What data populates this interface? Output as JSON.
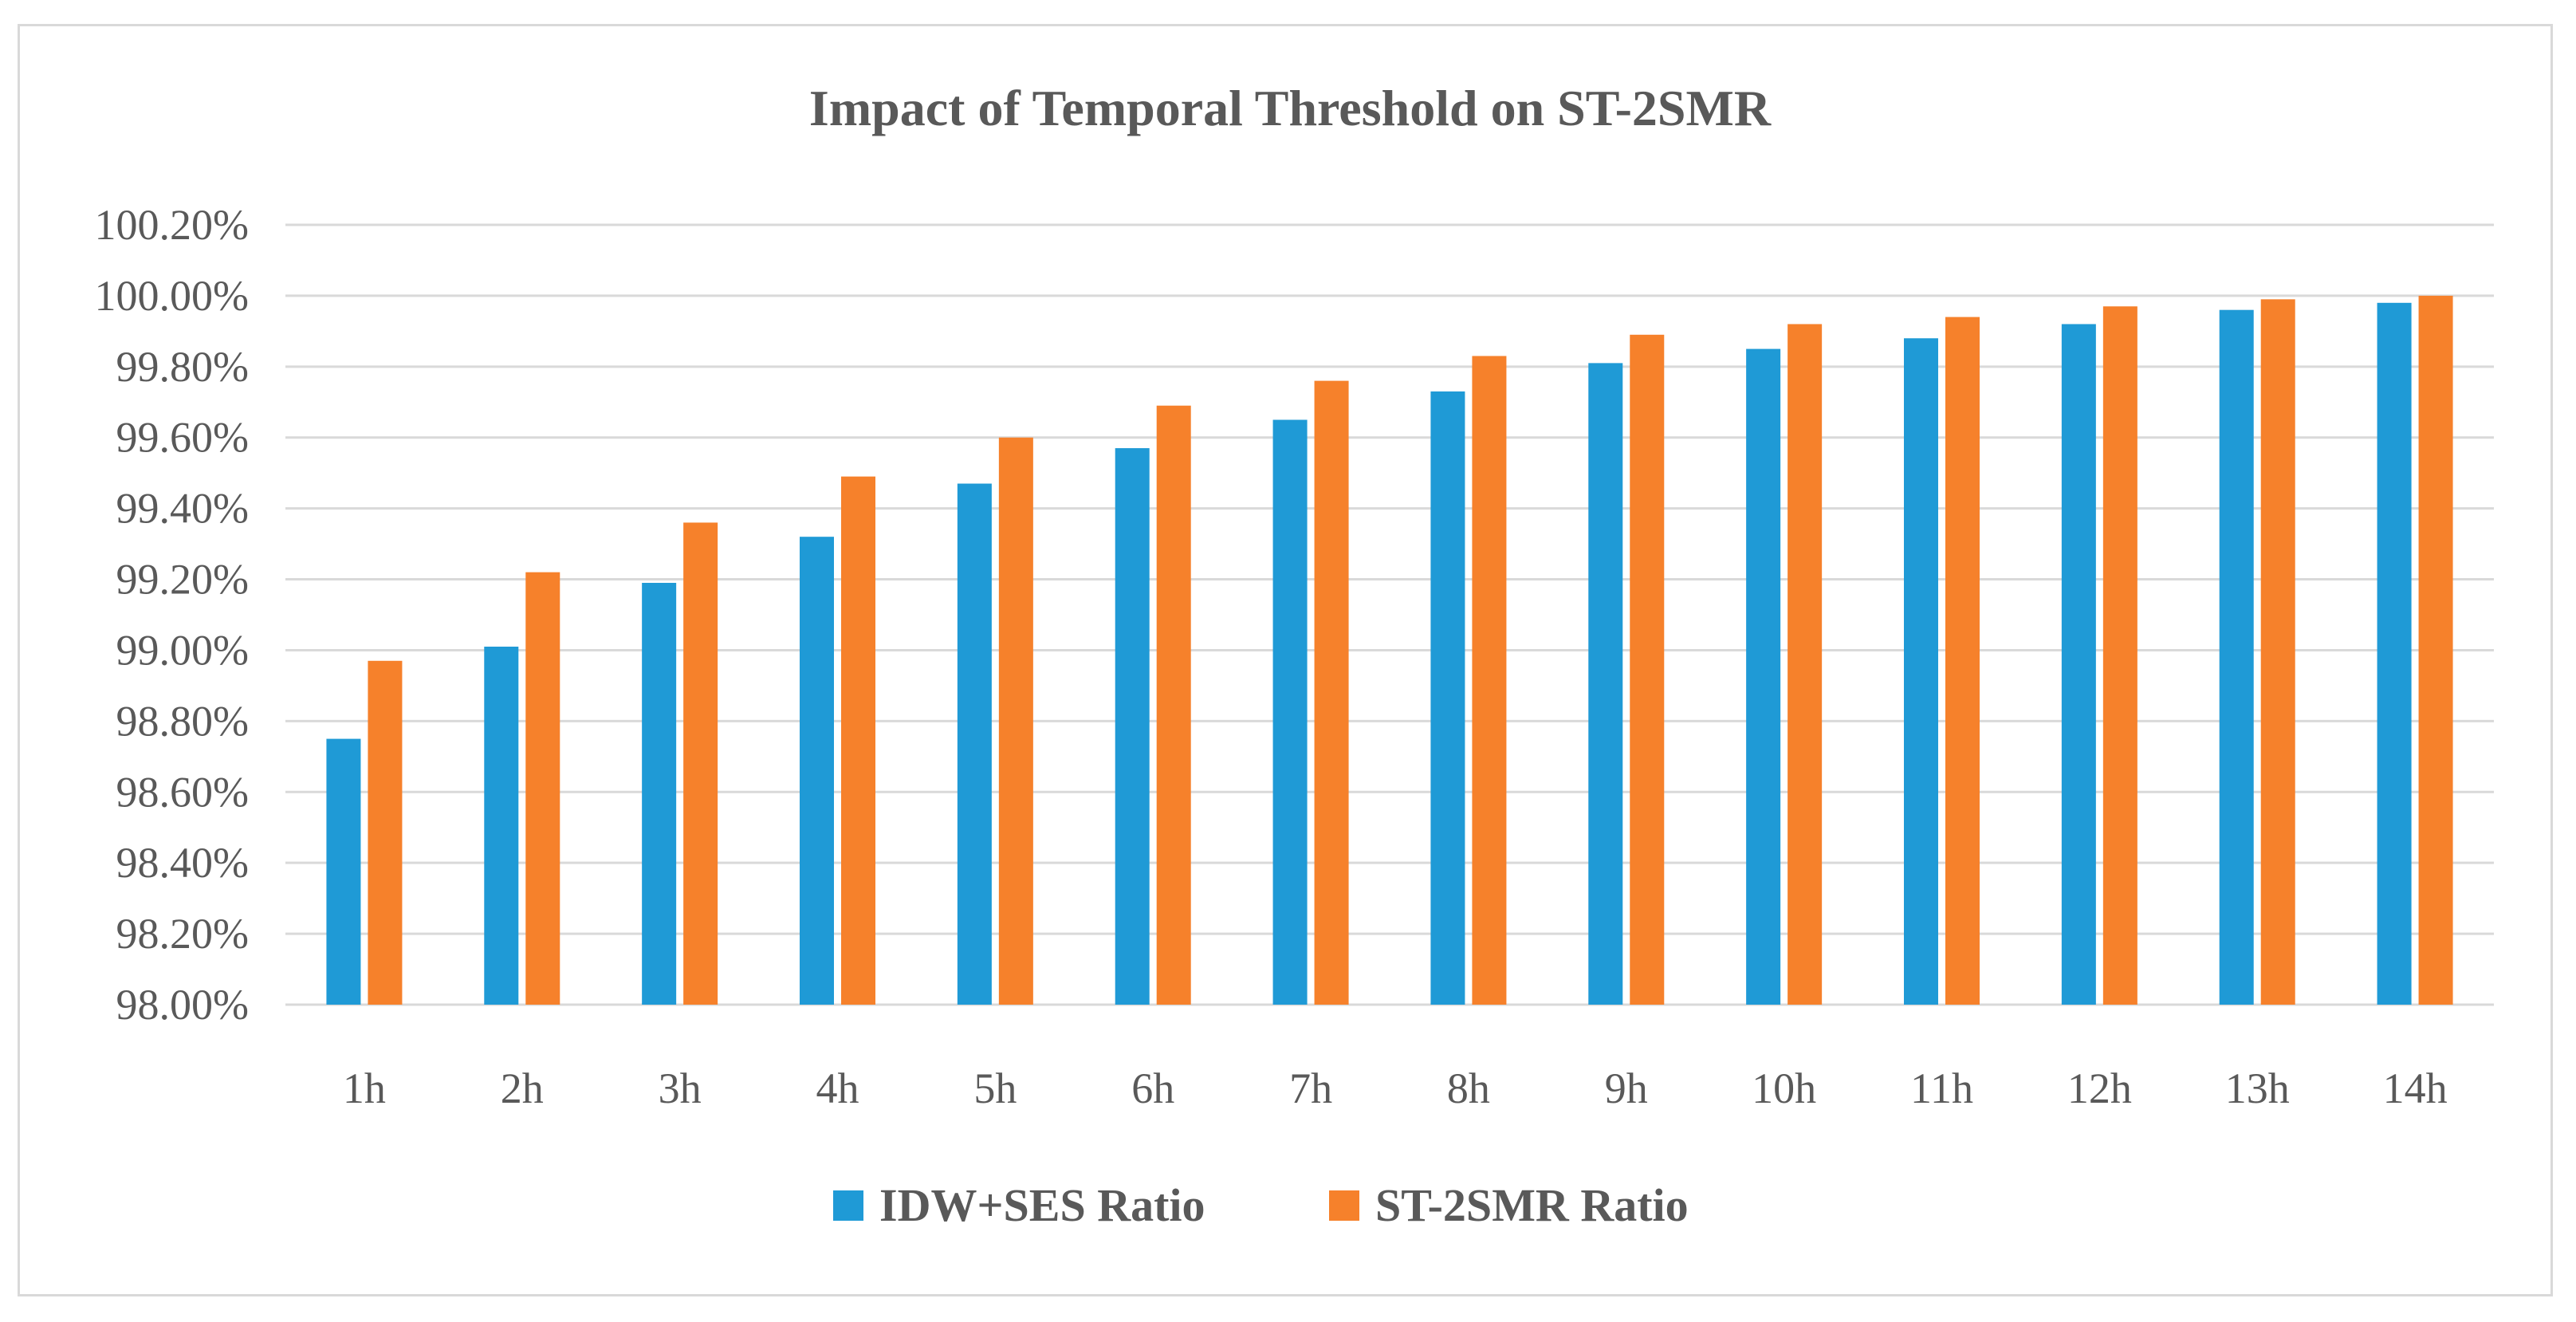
{
  "chart_data": {
    "type": "bar",
    "title": "Impact of Temporal Threshold on ST-2SMR",
    "xlabel": "",
    "ylabel": "",
    "categories": [
      "1h",
      "2h",
      "3h",
      "4h",
      "5h",
      "6h",
      "7h",
      "8h",
      "9h",
      "10h",
      "11h",
      "12h",
      "13h",
      "14h"
    ],
    "series": [
      {
        "name": "IDW+SES Ratio",
        "color": "#1f9ad6",
        "values": [
          98.75,
          99.01,
          99.19,
          99.32,
          99.47,
          99.57,
          99.65,
          99.73,
          99.81,
          99.85,
          99.88,
          99.92,
          99.96,
          99.98
        ]
      },
      {
        "name": "ST-2SMR Ratio",
        "color": "#f6812b",
        "values": [
          98.97,
          99.22,
          99.36,
          99.49,
          99.6,
          99.69,
          99.76,
          99.83,
          99.89,
          99.92,
          99.94,
          99.97,
          99.99,
          100.0
        ]
      }
    ],
    "ylim": [
      98.0,
      100.2
    ],
    "yticks": [
      "98.00%",
      "98.20%",
      "98.40%",
      "98.60%",
      "98.80%",
      "99.00%",
      "99.20%",
      "99.40%",
      "99.60%",
      "99.80%",
      "100.00%",
      "100.20%"
    ],
    "grid": true,
    "legend_position": "bottom",
    "gridline_color": "#d9d9d9",
    "text_color": "#595959"
  }
}
